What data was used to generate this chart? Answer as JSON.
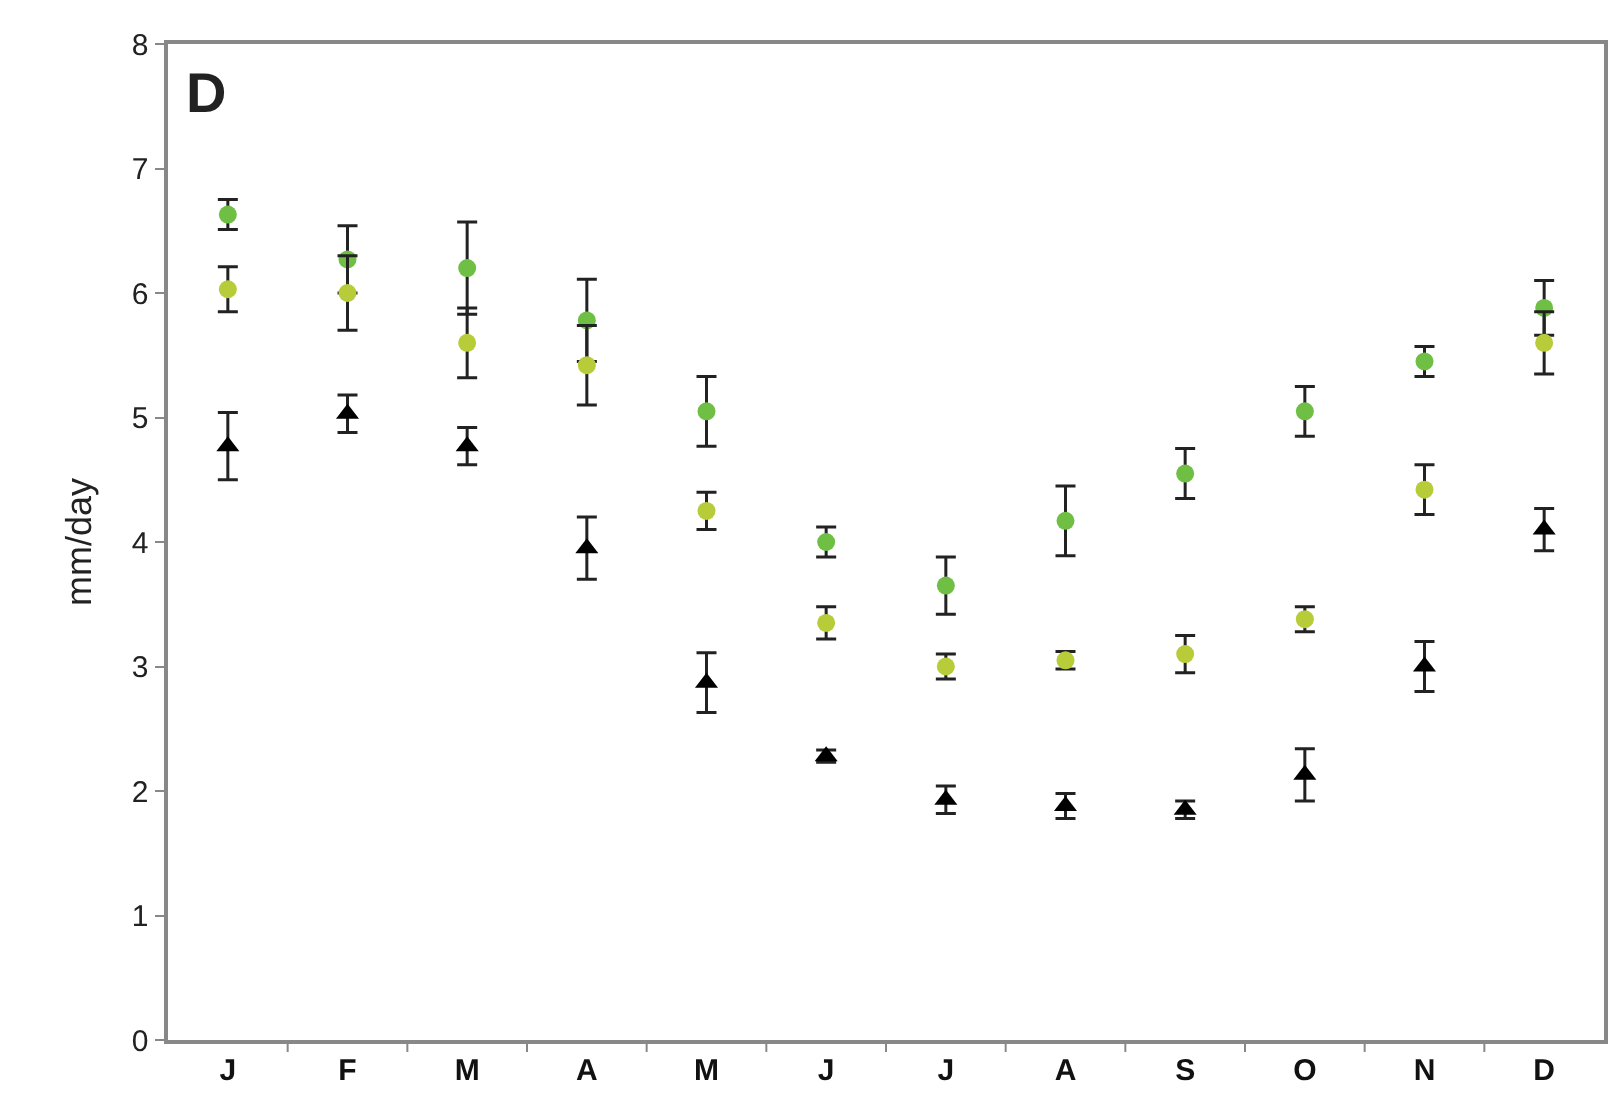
{
  "chart_data": {
    "type": "scatter",
    "ylabel": "mm/day",
    "annotations": [
      "D"
    ],
    "categories": [
      "J",
      "F",
      "M",
      "A",
      "M",
      "J",
      "J",
      "A",
      "S",
      "O",
      "N",
      "D"
    ],
    "ylim": [
      0,
      8
    ],
    "yticks": [
      0,
      1,
      2,
      3,
      4,
      5,
      6,
      7,
      8
    ],
    "series": [
      {
        "color": "#6fbf44",
        "marker": "circle",
        "values": [
          6.63,
          6.27,
          6.2,
          5.78,
          5.05,
          4.0,
          3.65,
          4.17,
          4.55,
          5.05,
          5.45,
          5.88
        ],
        "errors": [
          0.12,
          0.27,
          0.37,
          0.33,
          0.28,
          0.12,
          0.23,
          0.28,
          0.2,
          0.2,
          0.12,
          0.22
        ]
      },
      {
        "color": "#b8cc3a",
        "marker": "circle",
        "values": [
          6.03,
          6.0,
          5.6,
          5.42,
          4.25,
          3.35,
          3.0,
          3.05,
          3.1,
          3.38,
          4.42,
          5.6
        ],
        "errors": [
          0.18,
          0.3,
          0.28,
          0.32,
          0.15,
          0.13,
          0.1,
          0.07,
          0.15,
          0.1,
          0.2,
          0.25
        ]
      },
      {
        "color": "#000000",
        "marker": "triangle",
        "values": [
          4.77,
          5.03,
          4.77,
          3.95,
          2.87,
          2.28,
          1.93,
          1.88,
          1.85,
          2.13,
          3.0,
          4.1
        ],
        "errors": [
          0.27,
          0.15,
          0.15,
          0.25,
          0.24,
          0.05,
          0.11,
          0.1,
          0.07,
          0.21,
          0.2,
          0.17
        ]
      }
    ]
  }
}
